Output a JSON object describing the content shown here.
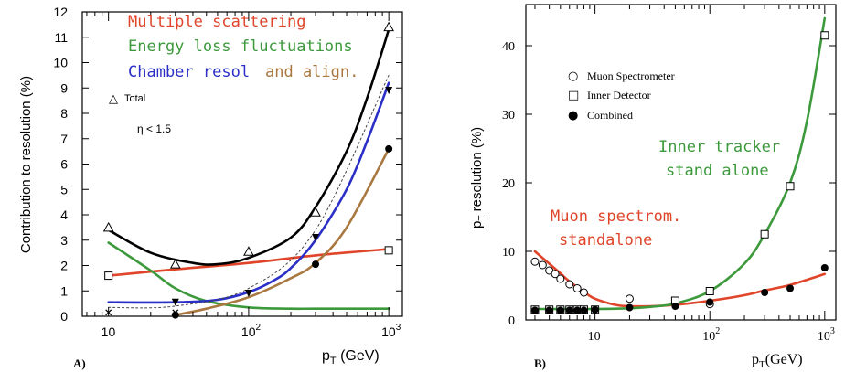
{
  "chart_data": [
    {
      "id": "A",
      "type": "line",
      "panel_label": "A)",
      "xscale": "log",
      "xlim": [
        6.5,
        1250
      ],
      "ylim": [
        0,
        12
      ],
      "x_ticks": [
        {
          "v": 10,
          "label": "10",
          "exp": ""
        },
        {
          "v": 100,
          "label": "10",
          "exp": "2"
        },
        {
          "v": 1000,
          "label": "10",
          "exp": "3"
        }
      ],
      "y_ticks": [
        0,
        1,
        2,
        3,
        4,
        5,
        6,
        7,
        8,
        9,
        10,
        11,
        12
      ],
      "xlabel": {
        "main": "p",
        "sub": "T",
        "unit": " (GeV)"
      },
      "ylabel": "Contribution to resolution (%)",
      "annotation": "η < 1.5",
      "legend_marker": {
        "symbol": "△",
        "text": "Total"
      },
      "series": [
        {
          "name": "Multiple scattering",
          "color": "#e0452a",
          "x": [
            10,
            30,
            100,
            300,
            1000
          ],
          "y": [
            1.6,
            1.85,
            2.1,
            2.4,
            2.65
          ],
          "markers": {
            "style": "open-square",
            "x": [
              10,
              1000
            ],
            "y": [
              1.6,
              2.6
            ]
          }
        },
        {
          "name": "Energy loss fluctuations",
          "color": "#3c9a3c",
          "x": [
            10,
            20,
            30,
            50,
            100,
            200,
            300,
            1000
          ],
          "y": [
            2.9,
            1.8,
            1.1,
            0.6,
            0.35,
            0.3,
            0.3,
            0.3
          ],
          "markers": {
            "style": "small-x",
            "x": [
              10,
              30
            ],
            "y": [
              0.15,
              0.15
            ]
          }
        },
        {
          "name": "Chamber resol",
          "color": "#2b2fc7",
          "x": [
            10,
            30,
            60,
            100,
            150,
            200,
            300,
            500,
            700,
            1000
          ],
          "y": [
            0.55,
            0.55,
            0.65,
            0.95,
            1.4,
            1.9,
            3.0,
            5.0,
            6.9,
            9.2
          ],
          "markers": {
            "style": "filled-down-triangle",
            "x": [
              30,
              100,
              300,
              1000
            ],
            "y": [
              0.55,
              0.9,
              3.1,
              8.9
            ]
          }
        },
        {
          "name": "and align.",
          "color": "#a87840",
          "x": [
            30,
            50,
            100,
            200,
            300,
            500,
            1000
          ],
          "y": [
            0.05,
            0.3,
            0.75,
            1.5,
            2.1,
            3.5,
            6.6
          ],
          "markers": {
            "style": "filled-circle",
            "x": [
              30,
              300,
              1000
            ],
            "y": [
              0.05,
              2.05,
              6.6
            ]
          }
        },
        {
          "name": "",
          "color": "#000000",
          "x": [
            10,
            20,
            40,
            60,
            100,
            200,
            300,
            500,
            700,
            1000
          ],
          "y": [
            3.4,
            2.5,
            2.1,
            2.05,
            2.3,
            3.1,
            4.3,
            6.5,
            8.6,
            11.3
          ],
          "markers": {
            "style": "open-triangle",
            "x": [
              10,
              30,
              100,
              300,
              1000
            ],
            "y": [
              3.5,
              2.05,
              2.55,
              4.1,
              11.4
            ]
          }
        },
        {
          "name": "",
          "color": "#444444",
          "dashed": true,
          "x": [
            10,
            30,
            100,
            300,
            1000
          ],
          "y": [
            0.35,
            0.4,
            1.1,
            3.4,
            9.5
          ]
        }
      ]
    },
    {
      "id": "B",
      "type": "line",
      "panel_label": "B)",
      "xscale": "log",
      "xlim": [
        2.5,
        1250
      ],
      "ylim": [
        0,
        46
      ],
      "x_ticks": [
        {
          "v": 10,
          "label": "10",
          "exp": ""
        },
        {
          "v": 100,
          "label": "10",
          "exp": "2"
        },
        {
          "v": 1000,
          "label": "10",
          "exp": "3"
        }
      ],
      "y_ticks": [
        0,
        10,
        20,
        30,
        40
      ],
      "xlabel": {
        "main": "p",
        "sub": "T",
        "unit": "(GeV)"
      },
      "ylabel": {
        "main": "p",
        "sub": "T",
        "unit": " resolution (%)"
      },
      "legend": [
        {
          "symbol": "○",
          "text": "Muon Spectrometer"
        },
        {
          "symbol": "□",
          "text": "Inner Detector"
        },
        {
          "symbol": "●",
          "text": "Combined"
        }
      ],
      "annotations": [
        {
          "lines": [
            "Inner tracker",
            "stand alone"
          ],
          "color": "#3c9a3c"
        },
        {
          "lines": [
            "Muon spectrom.",
            "standalone"
          ],
          "color": "#e0452a"
        }
      ],
      "series": [
        {
          "name": "Muon Spectrometer",
          "color": "#e0452a",
          "x": [
            3,
            4,
            5,
            6,
            8,
            10,
            15,
            20,
            30,
            50,
            100,
            200,
            300,
            500,
            1000
          ],
          "y": [
            10,
            8.2,
            6.8,
            5.6,
            4.1,
            3.1,
            2.2,
            2.0,
            2.0,
            2.2,
            2.8,
            3.6,
            4.3,
            5.1,
            6.7
          ],
          "markers": {
            "style": "open-circle",
            "x": [
              3,
              3.5,
              4,
              4.5,
              5,
              6,
              7,
              8,
              20,
              50,
              100
            ],
            "y": [
              8.5,
              8.0,
              7.2,
              6.7,
              6.0,
              5.2,
              4.6,
              4.0,
              3.1,
              2.6,
              2.3
            ]
          }
        },
        {
          "name": "Inner Detector",
          "color": "#3c9a3c",
          "x": [
            3,
            10,
            20,
            30,
            50,
            100,
            200,
            300,
            500,
            700,
            1000
          ],
          "y": [
            1.6,
            1.6,
            1.7,
            1.9,
            2.4,
            4.2,
            8.2,
            12.5,
            20,
            29,
            44
          ],
          "markers": {
            "style": "open-square",
            "x": [
              3,
              4,
              5,
              6,
              7,
              8,
              10,
              50,
              100,
              300,
              500,
              1000
            ],
            "y": [
              1.5,
              1.5,
              1.5,
              1.5,
              1.5,
              1.5,
              1.5,
              2.8,
              4.2,
              12.5,
              19.5,
              41.5
            ]
          }
        },
        {
          "name": "Combined",
          "color": "#000000",
          "markers": {
            "style": "filled-circle",
            "x": [
              3,
              4,
              5,
              6,
              7,
              8,
              10,
              20,
              50,
              100,
              300,
              500,
              1000
            ],
            "y": [
              1.4,
              1.4,
              1.4,
              1.4,
              1.4,
              1.4,
              1.5,
              1.8,
              2.0,
              2.6,
              4.0,
              4.6,
              7.6
            ]
          }
        }
      ]
    }
  ]
}
